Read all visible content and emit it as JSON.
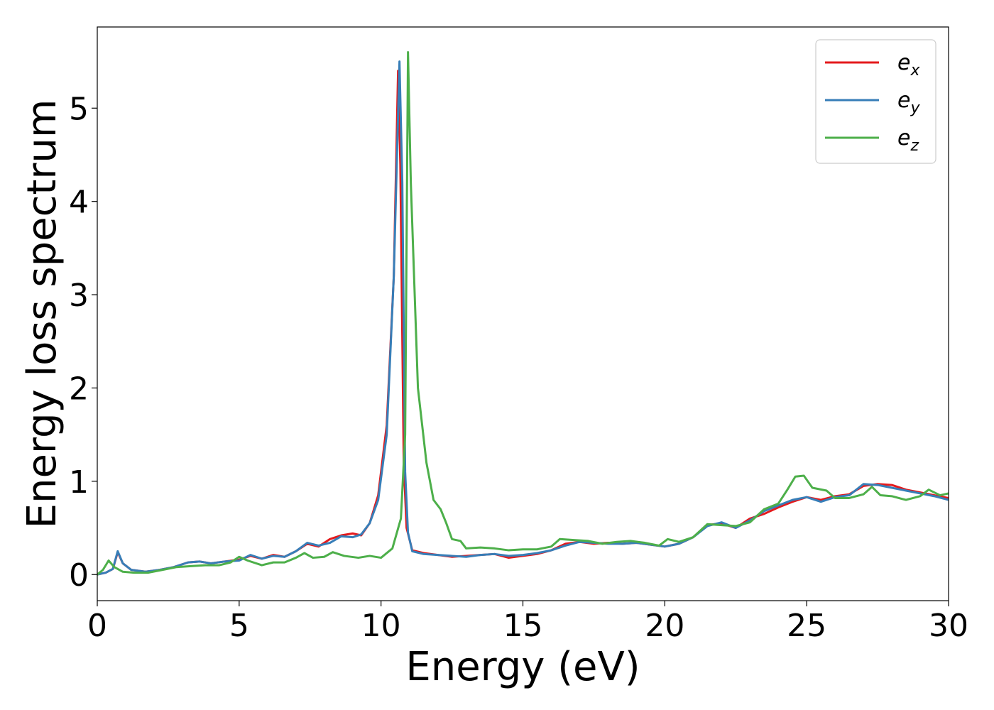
{
  "chart_data": {
    "type": "line",
    "title": "",
    "xlabel": "Energy (eV)",
    "ylabel": "Energy loss spectrum",
    "xlim": [
      0,
      30
    ],
    "ylim": [
      -0.28,
      5.87
    ],
    "xticks": [
      0,
      5,
      10,
      15,
      20,
      25,
      30
    ],
    "yticks": [
      0,
      1,
      2,
      3,
      4,
      5
    ],
    "grid": false,
    "legend_position": "top-right",
    "series": [
      {
        "name": "e_x",
        "label_main": "e",
        "label_sub": "x",
        "color": "#e41a1c",
        "points": [
          [
            0,
            0
          ],
          [
            0.3,
            0.02
          ],
          [
            0.55,
            0.06
          ],
          [
            0.72,
            0.24
          ],
          [
            0.9,
            0.12
          ],
          [
            1.2,
            0.05
          ],
          [
            1.7,
            0.03
          ],
          [
            2.2,
            0.05
          ],
          [
            2.7,
            0.08
          ],
          [
            3.2,
            0.13
          ],
          [
            3.6,
            0.14
          ],
          [
            4.0,
            0.12
          ],
          [
            4.5,
            0.14
          ],
          [
            5.0,
            0.16
          ],
          [
            5.4,
            0.2
          ],
          [
            5.8,
            0.17
          ],
          [
            6.2,
            0.21
          ],
          [
            6.6,
            0.19
          ],
          [
            7.0,
            0.25
          ],
          [
            7.4,
            0.33
          ],
          [
            7.8,
            0.3
          ],
          [
            8.2,
            0.38
          ],
          [
            8.6,
            0.42
          ],
          [
            9.0,
            0.44
          ],
          [
            9.3,
            0.42
          ],
          [
            9.6,
            0.55
          ],
          [
            9.9,
            0.85
          ],
          [
            10.2,
            1.6
          ],
          [
            10.45,
            3.2
          ],
          [
            10.6,
            5.4
          ],
          [
            10.68,
            4.4
          ],
          [
            10.8,
            1.2
          ],
          [
            10.9,
            0.5
          ],
          [
            11.1,
            0.26
          ],
          [
            11.5,
            0.23
          ],
          [
            12.0,
            0.21
          ],
          [
            12.5,
            0.19
          ],
          [
            13.0,
            0.2
          ],
          [
            13.5,
            0.21
          ],
          [
            14.0,
            0.22
          ],
          [
            14.5,
            0.18
          ],
          [
            15.0,
            0.2
          ],
          [
            15.5,
            0.22
          ],
          [
            16.0,
            0.26
          ],
          [
            16.5,
            0.33
          ],
          [
            17.0,
            0.35
          ],
          [
            17.5,
            0.33
          ],
          [
            18.0,
            0.34
          ],
          [
            18.5,
            0.33
          ],
          [
            19.0,
            0.34
          ],
          [
            19.5,
            0.32
          ],
          [
            20.0,
            0.3
          ],
          [
            20.5,
            0.33
          ],
          [
            21.0,
            0.4
          ],
          [
            21.5,
            0.53
          ],
          [
            22.0,
            0.55
          ],
          [
            22.5,
            0.5
          ],
          [
            23.0,
            0.6
          ],
          [
            23.5,
            0.65
          ],
          [
            24.0,
            0.72
          ],
          [
            24.5,
            0.78
          ],
          [
            25.0,
            0.83
          ],
          [
            25.5,
            0.8
          ],
          [
            26.0,
            0.84
          ],
          [
            26.5,
            0.86
          ],
          [
            27.0,
            0.95
          ],
          [
            27.5,
            0.97
          ],
          [
            28.0,
            0.96
          ],
          [
            28.5,
            0.91
          ],
          [
            29.0,
            0.88
          ],
          [
            29.5,
            0.85
          ],
          [
            30.0,
            0.82
          ]
        ]
      },
      {
        "name": "e_y",
        "label_main": "e",
        "label_sub": "y",
        "color": "#377eb8",
        "points": [
          [
            0,
            0
          ],
          [
            0.3,
            0.02
          ],
          [
            0.55,
            0.06
          ],
          [
            0.72,
            0.25
          ],
          [
            0.9,
            0.12
          ],
          [
            1.2,
            0.05
          ],
          [
            1.7,
            0.03
          ],
          [
            2.2,
            0.05
          ],
          [
            2.7,
            0.08
          ],
          [
            3.2,
            0.13
          ],
          [
            3.6,
            0.14
          ],
          [
            4.0,
            0.12
          ],
          [
            4.5,
            0.14
          ],
          [
            5.0,
            0.15
          ],
          [
            5.4,
            0.21
          ],
          [
            5.8,
            0.17
          ],
          [
            6.2,
            0.2
          ],
          [
            6.6,
            0.19
          ],
          [
            7.0,
            0.25
          ],
          [
            7.4,
            0.34
          ],
          [
            7.8,
            0.31
          ],
          [
            8.2,
            0.34
          ],
          [
            8.6,
            0.41
          ],
          [
            9.0,
            0.4
          ],
          [
            9.3,
            0.43
          ],
          [
            9.6,
            0.55
          ],
          [
            9.9,
            0.8
          ],
          [
            10.2,
            1.5
          ],
          [
            10.45,
            3.2
          ],
          [
            10.65,
            5.5
          ],
          [
            10.75,
            4.2
          ],
          [
            10.85,
            1.1
          ],
          [
            10.95,
            0.45
          ],
          [
            11.1,
            0.25
          ],
          [
            11.5,
            0.22
          ],
          [
            12.0,
            0.21
          ],
          [
            12.5,
            0.2
          ],
          [
            13.0,
            0.19
          ],
          [
            13.5,
            0.21
          ],
          [
            14.0,
            0.22
          ],
          [
            14.5,
            0.2
          ],
          [
            15.0,
            0.21
          ],
          [
            15.5,
            0.23
          ],
          [
            16.0,
            0.26
          ],
          [
            16.5,
            0.31
          ],
          [
            17.0,
            0.35
          ],
          [
            17.5,
            0.34
          ],
          [
            18.0,
            0.33
          ],
          [
            18.5,
            0.33
          ],
          [
            19.0,
            0.34
          ],
          [
            19.5,
            0.32
          ],
          [
            20.0,
            0.3
          ],
          [
            20.5,
            0.33
          ],
          [
            21.0,
            0.4
          ],
          [
            21.5,
            0.52
          ],
          [
            22.0,
            0.56
          ],
          [
            22.5,
            0.5
          ],
          [
            23.0,
            0.58
          ],
          [
            23.5,
            0.68
          ],
          [
            24.0,
            0.74
          ],
          [
            24.5,
            0.8
          ],
          [
            25.0,
            0.83
          ],
          [
            25.5,
            0.78
          ],
          [
            26.0,
            0.83
          ],
          [
            26.5,
            0.85
          ],
          [
            27.0,
            0.97
          ],
          [
            27.5,
            0.96
          ],
          [
            28.0,
            0.93
          ],
          [
            28.5,
            0.9
          ],
          [
            29.0,
            0.87
          ],
          [
            29.5,
            0.84
          ],
          [
            30.0,
            0.8
          ]
        ]
      },
      {
        "name": "e_z",
        "label_main": "e",
        "label_sub": "z",
        "color": "#4daf4a",
        "points": [
          [
            0,
            0
          ],
          [
            0.2,
            0.05
          ],
          [
            0.4,
            0.15
          ],
          [
            0.6,
            0.08
          ],
          [
            0.9,
            0.03
          ],
          [
            1.3,
            0.02
          ],
          [
            1.8,
            0.02
          ],
          [
            2.3,
            0.05
          ],
          [
            2.8,
            0.08
          ],
          [
            3.3,
            0.09
          ],
          [
            3.8,
            0.1
          ],
          [
            4.3,
            0.1
          ],
          [
            4.7,
            0.13
          ],
          [
            5.0,
            0.19
          ],
          [
            5.3,
            0.15
          ],
          [
            5.8,
            0.1
          ],
          [
            6.2,
            0.13
          ],
          [
            6.6,
            0.13
          ],
          [
            7.0,
            0.18
          ],
          [
            7.3,
            0.23
          ],
          [
            7.6,
            0.18
          ],
          [
            8.0,
            0.19
          ],
          [
            8.3,
            0.24
          ],
          [
            8.7,
            0.2
          ],
          [
            9.2,
            0.18
          ],
          [
            9.6,
            0.2
          ],
          [
            10.0,
            0.18
          ],
          [
            10.4,
            0.28
          ],
          [
            10.7,
            0.6
          ],
          [
            10.85,
            1.5
          ],
          [
            10.95,
            5.6
          ],
          [
            11.05,
            4.2
          ],
          [
            11.3,
            2.0
          ],
          [
            11.6,
            1.2
          ],
          [
            11.85,
            0.8
          ],
          [
            12.1,
            0.7
          ],
          [
            12.3,
            0.55
          ],
          [
            12.5,
            0.38
          ],
          [
            12.8,
            0.36
          ],
          [
            13.0,
            0.28
          ],
          [
            13.5,
            0.29
          ],
          [
            14.0,
            0.28
          ],
          [
            14.5,
            0.26
          ],
          [
            15.0,
            0.27
          ],
          [
            15.5,
            0.27
          ],
          [
            16.0,
            0.3
          ],
          [
            16.3,
            0.38
          ],
          [
            16.8,
            0.37
          ],
          [
            17.3,
            0.36
          ],
          [
            17.8,
            0.33
          ],
          [
            18.3,
            0.35
          ],
          [
            18.8,
            0.36
          ],
          [
            19.3,
            0.34
          ],
          [
            19.8,
            0.31
          ],
          [
            20.1,
            0.38
          ],
          [
            20.5,
            0.35
          ],
          [
            21.0,
            0.4
          ],
          [
            21.5,
            0.54
          ],
          [
            22.0,
            0.53
          ],
          [
            22.5,
            0.52
          ],
          [
            23.0,
            0.56
          ],
          [
            23.5,
            0.7
          ],
          [
            24.0,
            0.76
          ],
          [
            24.3,
            0.9
          ],
          [
            24.6,
            1.05
          ],
          [
            24.9,
            1.06
          ],
          [
            25.2,
            0.93
          ],
          [
            25.7,
            0.9
          ],
          [
            26.0,
            0.82
          ],
          [
            26.5,
            0.82
          ],
          [
            27.0,
            0.86
          ],
          [
            27.3,
            0.94
          ],
          [
            27.6,
            0.85
          ],
          [
            28.0,
            0.84
          ],
          [
            28.5,
            0.8
          ],
          [
            29.0,
            0.84
          ],
          [
            29.3,
            0.91
          ],
          [
            29.7,
            0.85
          ],
          [
            30.0,
            0.87
          ]
        ]
      }
    ]
  }
}
